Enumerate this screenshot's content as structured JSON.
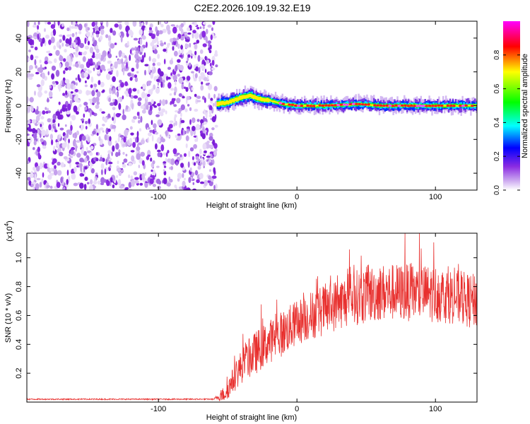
{
  "title": "C2E2.2026.109.19.32.E19",
  "colors": {
    "noise": "#8a2be2",
    "signal_line": "#e8302e",
    "frame": "#000000"
  },
  "chart_data": [
    {
      "type": "heatmap",
      "title": "C2E2.2026.109.19.32.E19",
      "xlabel": "Height of straight line (km)",
      "ylabel": "Frequency (Hz)",
      "xlim": [
        -195,
        130
      ],
      "ylim": [
        -50,
        50
      ],
      "xticks": [
        -100,
        0,
        100
      ],
      "yticks": [
        -40,
        -20,
        0,
        20,
        40
      ],
      "xtick_labels": [
        "-100",
        "0",
        "100"
      ],
      "ytick_labels": [
        "-40",
        "-20",
        "0",
        "20",
        "40"
      ],
      "noise_region_x": [
        -195,
        -58
      ],
      "signal_region_x": [
        -58,
        130
      ],
      "signal_ridge": [
        {
          "x": -58,
          "y": 1
        },
        {
          "x": -50,
          "y": 2
        },
        {
          "x": -40,
          "y": 5
        },
        {
          "x": -34,
          "y": 6
        },
        {
          "x": -28,
          "y": 4
        },
        {
          "x": -20,
          "y": 3
        },
        {
          "x": -10,
          "y": 1
        },
        {
          "x": 0,
          "y": 0
        },
        {
          "x": 20,
          "y": 0
        },
        {
          "x": 45,
          "y": 1
        },
        {
          "x": 60,
          "y": 0
        },
        {
          "x": 80,
          "y": 0
        },
        {
          "x": 100,
          "y": 0
        },
        {
          "x": 130,
          "y": 0
        }
      ],
      "colorbar": {
        "label": "Normalized spectral amplitude",
        "range": [
          0,
          1
        ],
        "ticks": [
          0.0,
          0.2,
          0.4,
          0.6,
          0.8
        ],
        "tick_labels": [
          "0.0",
          "0.2",
          "0.4",
          "0.6",
          "0.8"
        ],
        "colors": [
          "#ffffff",
          "#8a2be2",
          "#0000ff",
          "#00ffff",
          "#00ff00",
          "#ffff00",
          "#ff0000",
          "#ff00ff"
        ]
      }
    },
    {
      "type": "line",
      "xlabel": "Height of straight line (km)",
      "ylabel": "SNR (10 * v/v)",
      "multiplier": "(x10",
      "multiplier_exp": "4",
      "multiplier_close": ")",
      "xlim": [
        -195,
        130
      ],
      "ylim": [
        0,
        1.17
      ],
      "xticks": [
        -100,
        0,
        100
      ],
      "yticks": [
        0.2,
        0.4,
        0.6,
        0.8,
        1.0
      ],
      "xtick_labels": [
        "-100",
        "0",
        "100"
      ],
      "ytick_labels": [
        "0.2",
        "0.4",
        "0.6",
        "0.8",
        "1.0"
      ],
      "series": [
        {
          "name": "SNR",
          "color": "#e8302e",
          "x": [
            -195,
            -60,
            -52,
            -48,
            -40,
            -30,
            -20,
            -10,
            0,
            10,
            20,
            30,
            40,
            50,
            60,
            80,
            100,
            115,
            125,
            130
          ],
          "mean": [
            0.02,
            0.02,
            0.06,
            0.12,
            0.25,
            0.34,
            0.42,
            0.48,
            0.55,
            0.6,
            0.64,
            0.68,
            0.72,
            0.74,
            0.76,
            0.76,
            0.75,
            0.73,
            0.7,
            0.7
          ],
          "spread": [
            0.004,
            0.004,
            0.06,
            0.08,
            0.12,
            0.15,
            0.15,
            0.16,
            0.16,
            0.17,
            0.18,
            0.18,
            0.19,
            0.2,
            0.2,
            0.2,
            0.2,
            0.19,
            0.19,
            0.19
          ],
          "peak": {
            "x": 78,
            "y": 1.17
          }
        }
      ]
    }
  ]
}
